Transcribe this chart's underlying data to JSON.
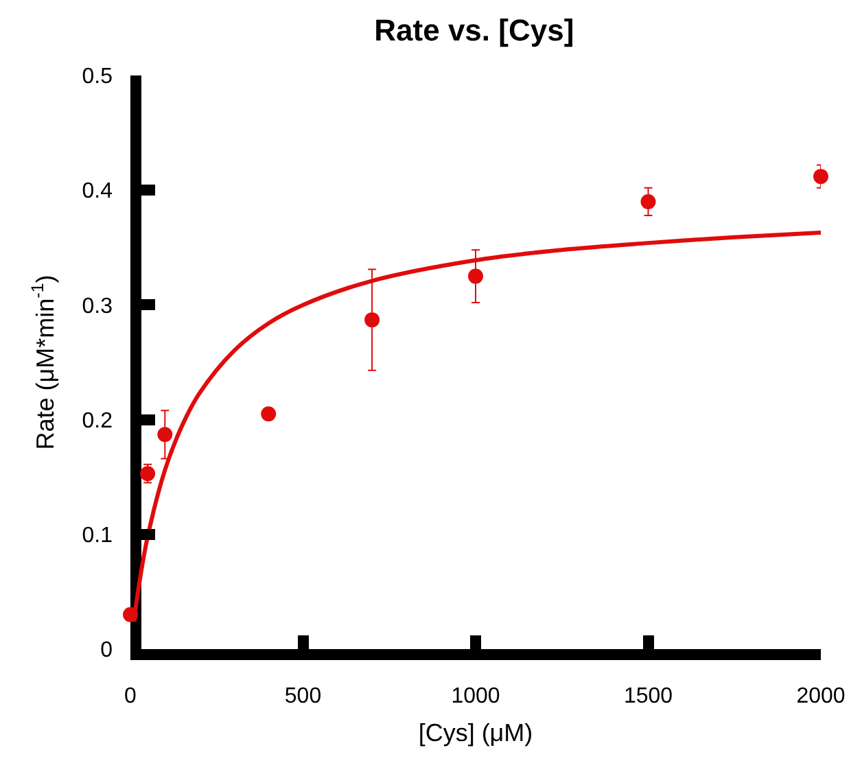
{
  "chart_data": {
    "type": "scatter",
    "title": "Rate vs. [Cys]",
    "xlabel": "[Cys] (μM)",
    "ylabel": "Rate (μM*min$^{-1}$)",
    "series": [
      {
        "color": "#e00c0c",
        "marker": "circle",
        "x": [
          0,
          50,
          100,
          400,
          700,
          1000,
          1500,
          2000
        ],
        "values": [
          0.03,
          0.153,
          0.187,
          0.205,
          0.287,
          0.325,
          0.39,
          0.412
        ],
        "errors": [
          null,
          0.008,
          0.021,
          null,
          0.044,
          0.023,
          0.012,
          0.01
        ]
      },
      {
        "type": "line",
        "color": "#e00c0c",
        "line_style": "solid",
        "x": [
          10,
          25,
          50,
          100,
          150,
          200,
          300,
          400,
          500,
          700,
          1000,
          1250,
          1500,
          1750,
          2000
        ],
        "values": [
          0.024,
          0.056,
          0.098,
          0.156,
          0.195,
          0.223,
          0.26,
          0.284,
          0.3,
          0.321,
          0.339,
          0.348,
          0.354,
          0.359,
          0.363
        ]
      }
    ],
    "xlim": [
      0,
      2000
    ],
    "xticks": [
      0,
      500,
      1000,
      1500,
      2000
    ],
    "ylim": [
      0,
      0.5
    ],
    "yticks": [
      0,
      0.1,
      0.2,
      0.3,
      0.4,
      0.5
    ]
  }
}
